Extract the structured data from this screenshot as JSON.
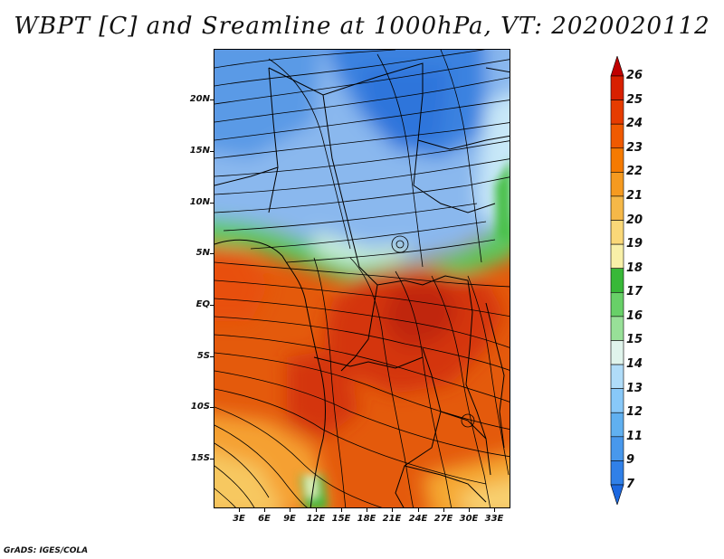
{
  "title": "WBPT [C] and Sreamline at 1000hPa, VT: 2020020112",
  "credit": "GrADS: IGES/COLA",
  "map": {
    "lat_labels": [
      "20N",
      "15N",
      "10N",
      "5N",
      "EQ",
      "5S",
      "10S",
      "15S"
    ],
    "lon_labels": [
      "3E",
      "6E",
      "9E",
      "12E",
      "15E",
      "18E",
      "21E",
      "24E",
      "27E",
      "30E",
      "33E"
    ]
  },
  "colorbar": {
    "labels": [
      "26",
      "25",
      "24",
      "23",
      "22",
      "21",
      "20",
      "19",
      "18",
      "17",
      "16",
      "15",
      "14",
      "13",
      "12",
      "11",
      "9",
      "7"
    ],
    "colors": [
      "#c00000",
      "#d82000",
      "#e63c00",
      "#f05a00",
      "#f57a00",
      "#f59a20",
      "#f5b848",
      "#fad878",
      "#f8f0a8",
      "#38b838",
      "#68d068",
      "#98e098",
      "#e0f4ec",
      "#b0dcf8",
      "#88c8f8",
      "#60b0f0",
      "#4898ec",
      "#3080e8",
      "#1c68e0"
    ]
  }
}
